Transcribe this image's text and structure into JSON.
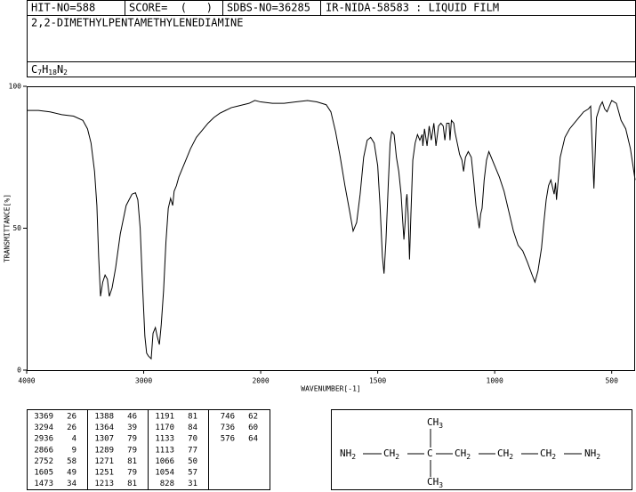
{
  "header": {
    "hit_no": "HIT-NO=588",
    "score": "SCORE=  (   )",
    "sdbs_no": "SDBS-NO=36285",
    "source": "IR-NIDA-58583 : LIQUID FILM",
    "name": "2,2-DIMETHYLPENTAMETHYLENEDIAMINE",
    "formula": "C7H18N2"
  },
  "chart_data": {
    "type": "line",
    "x_label": "WAVENUMBER[-1]",
    "y_label": "TRANSMITTANCE[%]",
    "color": "#000000",
    "xlim": [
      4000,
      400
    ],
    "xticks": [
      4000,
      3000,
      2000,
      1500,
      1000,
      500
    ],
    "ylim": [
      0,
      100
    ],
    "yticks": [
      0,
      50,
      100
    ],
    "x": [
      4000,
      3900,
      3800,
      3700,
      3600,
      3520,
      3480,
      3450,
      3420,
      3400,
      3385,
      3369,
      3350,
      3330,
      3310,
      3294,
      3270,
      3240,
      3200,
      3150,
      3100,
      3070,
      3050,
      3030,
      3010,
      2990,
      2975,
      2960,
      2936,
      2920,
      2900,
      2885,
      2866,
      2850,
      2830,
      2810,
      2790,
      2770,
      2752,
      2740,
      2720,
      2700,
      2650,
      2600,
      2550,
      2500,
      2450,
      2400,
      2350,
      2300,
      2250,
      2200,
      2150,
      2100,
      2050,
      2000,
      1950,
      1900,
      1850,
      1800,
      1760,
      1720,
      1700,
      1680,
      1660,
      1640,
      1620,
      1605,
      1590,
      1575,
      1560,
      1545,
      1530,
      1515,
      1500,
      1490,
      1480,
      1473,
      1465,
      1455,
      1447,
      1440,
      1430,
      1420,
      1410,
      1400,
      1395,
      1388,
      1382,
      1378,
      1375,
      1370,
      1364,
      1358,
      1350,
      1340,
      1330,
      1320,
      1310,
      1307,
      1300,
      1289,
      1280,
      1271,
      1260,
      1251,
      1240,
      1230,
      1220,
      1213,
      1205,
      1195,
      1191,
      1185,
      1175,
      1170,
      1160,
      1150,
      1140,
      1133,
      1125,
      1113,
      1100,
      1090,
      1080,
      1066,
      1060,
      1054,
      1045,
      1035,
      1025,
      1015,
      1000,
      980,
      960,
      940,
      920,
      900,
      880,
      860,
      840,
      828,
      815,
      800,
      790,
      780,
      770,
      760,
      746,
      740,
      736,
      720,
      700,
      680,
      660,
      640,
      620,
      600,
      590,
      576,
      565,
      550,
      540,
      530,
      520,
      510,
      500,
      480,
      460,
      440,
      420,
      400
    ],
    "values": [
      91.5,
      91.5,
      91,
      90,
      89.5,
      88,
      85,
      80,
      70,
      58,
      40,
      26,
      31,
      33.5,
      32,
      26,
      29,
      36,
      48,
      58,
      62,
      62.5,
      60,
      50,
      30,
      12,
      6,
      5,
      4,
      13,
      15,
      12,
      9,
      16,
      28,
      45,
      57,
      60.5,
      58,
      63,
      65,
      68,
      73,
      78,
      82,
      84.5,
      87,
      89,
      90.5,
      91.5,
      92.5,
      93,
      93.5,
      94,
      95,
      94.5,
      94,
      94,
      94.5,
      95,
      94.5,
      93.5,
      91,
      84,
      75,
      65,
      56,
      49,
      52,
      62,
      75,
      81,
      82,
      80,
      72,
      58,
      40,
      34,
      45,
      65,
      80,
      84,
      83,
      75,
      70,
      62,
      55,
      46,
      53,
      60,
      62,
      55,
      39,
      55,
      74,
      80,
      83,
      81,
      83,
      79,
      85,
      79,
      86,
      81,
      87,
      79,
      86,
      87,
      86,
      81,
      87,
      87,
      81,
      88,
      87,
      84,
      80,
      76,
      74,
      70,
      75,
      77,
      75,
      67,
      58,
      50,
      55,
      57,
      67,
      74,
      77,
      75,
      72,
      68,
      63,
      56,
      49,
      44,
      42,
      38,
      33.5,
      31,
      35,
      43,
      52,
      60,
      65,
      67,
      62,
      66,
      60,
      75,
      82,
      85,
      87,
      89,
      91,
      92,
      93,
      64,
      89,
      93,
      94.5,
      92,
      91,
      93,
      95,
      94,
      88,
      85,
      78,
      67
    ]
  },
  "peak_table": {
    "columns": [
      [
        [
          3369,
          26
        ],
        [
          3294,
          26
        ],
        [
          2936,
          4
        ],
        [
          2866,
          9
        ],
        [
          2752,
          58
        ],
        [
          1605,
          49
        ],
        [
          1473,
          34
        ]
      ],
      [
        [
          1388,
          46
        ],
        [
          1364,
          39
        ],
        [
          1307,
          79
        ],
        [
          1289,
          79
        ],
        [
          1271,
          81
        ],
        [
          1251,
          79
        ],
        [
          1213,
          81
        ]
      ],
      [
        [
          1191,
          81
        ],
        [
          1170,
          84
        ],
        [
          1133,
          70
        ],
        [
          1113,
          77
        ],
        [
          1066,
          50
        ],
        [
          1054,
          57
        ],
        [
          828,
          31
        ]
      ],
      [
        [
          746,
          62
        ],
        [
          736,
          60
        ],
        [
          576,
          64
        ]
      ]
    ]
  },
  "structure": {
    "groups": [
      "NH2",
      "CH2",
      "C",
      "CH2",
      "CH2",
      "CH2",
      "NH2"
    ],
    "top": "CH3",
    "bottom": "CH3"
  }
}
